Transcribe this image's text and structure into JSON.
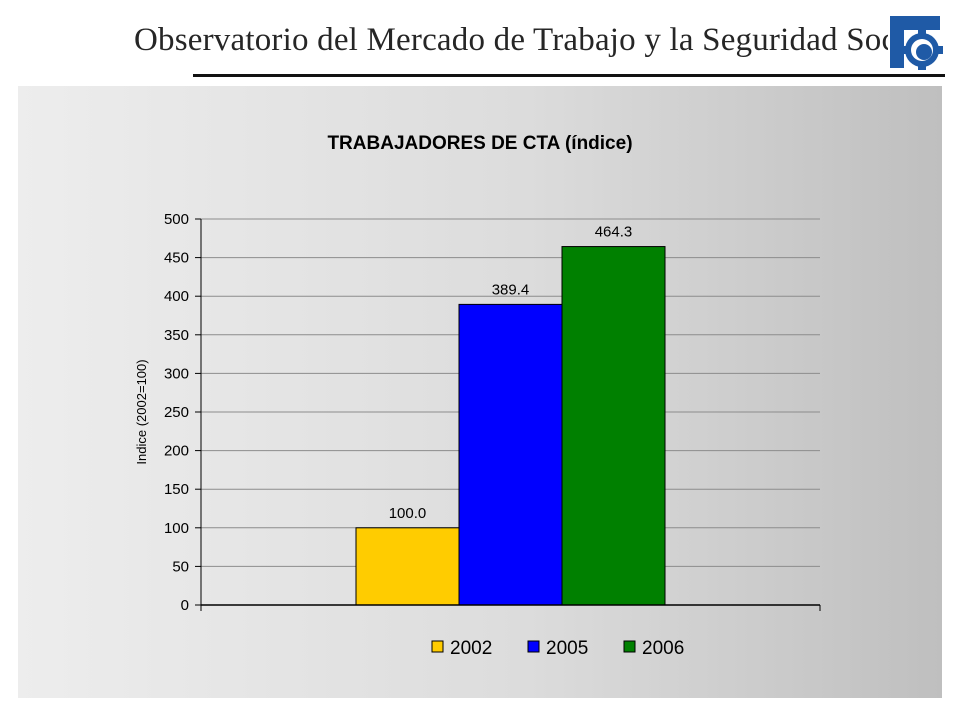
{
  "header": {
    "title": "Observatorio del Mercado de Trabajo y la Seguridad Social"
  },
  "colors": {
    "logo_blue": "#1f5aa6",
    "logo_blue_light": "#3b7fd0",
    "panel_bg": "#d9d9d9"
  },
  "chart_data": {
    "type": "bar",
    "title": "TRABAJADORES DE CTA (índice)",
    "xlabel": "",
    "ylabel": "Indice (2002=100)",
    "ylim": [
      0,
      500
    ],
    "yticks": [
      0,
      50,
      100,
      150,
      200,
      250,
      300,
      350,
      400,
      450,
      500
    ],
    "grid": true,
    "legend_position": "bottom",
    "categories": [
      ""
    ],
    "series": [
      {
        "name": "2002",
        "values": [
          100.0
        ],
        "labels": [
          "100.0"
        ],
        "color": "#ffcc00"
      },
      {
        "name": "2005",
        "values": [
          389.4
        ],
        "labels": [
          "389.4"
        ],
        "color": "#0000ff"
      },
      {
        "name": "2006",
        "values": [
          464.3
        ],
        "labels": [
          "464.3"
        ],
        "color": "#008000"
      }
    ]
  }
}
